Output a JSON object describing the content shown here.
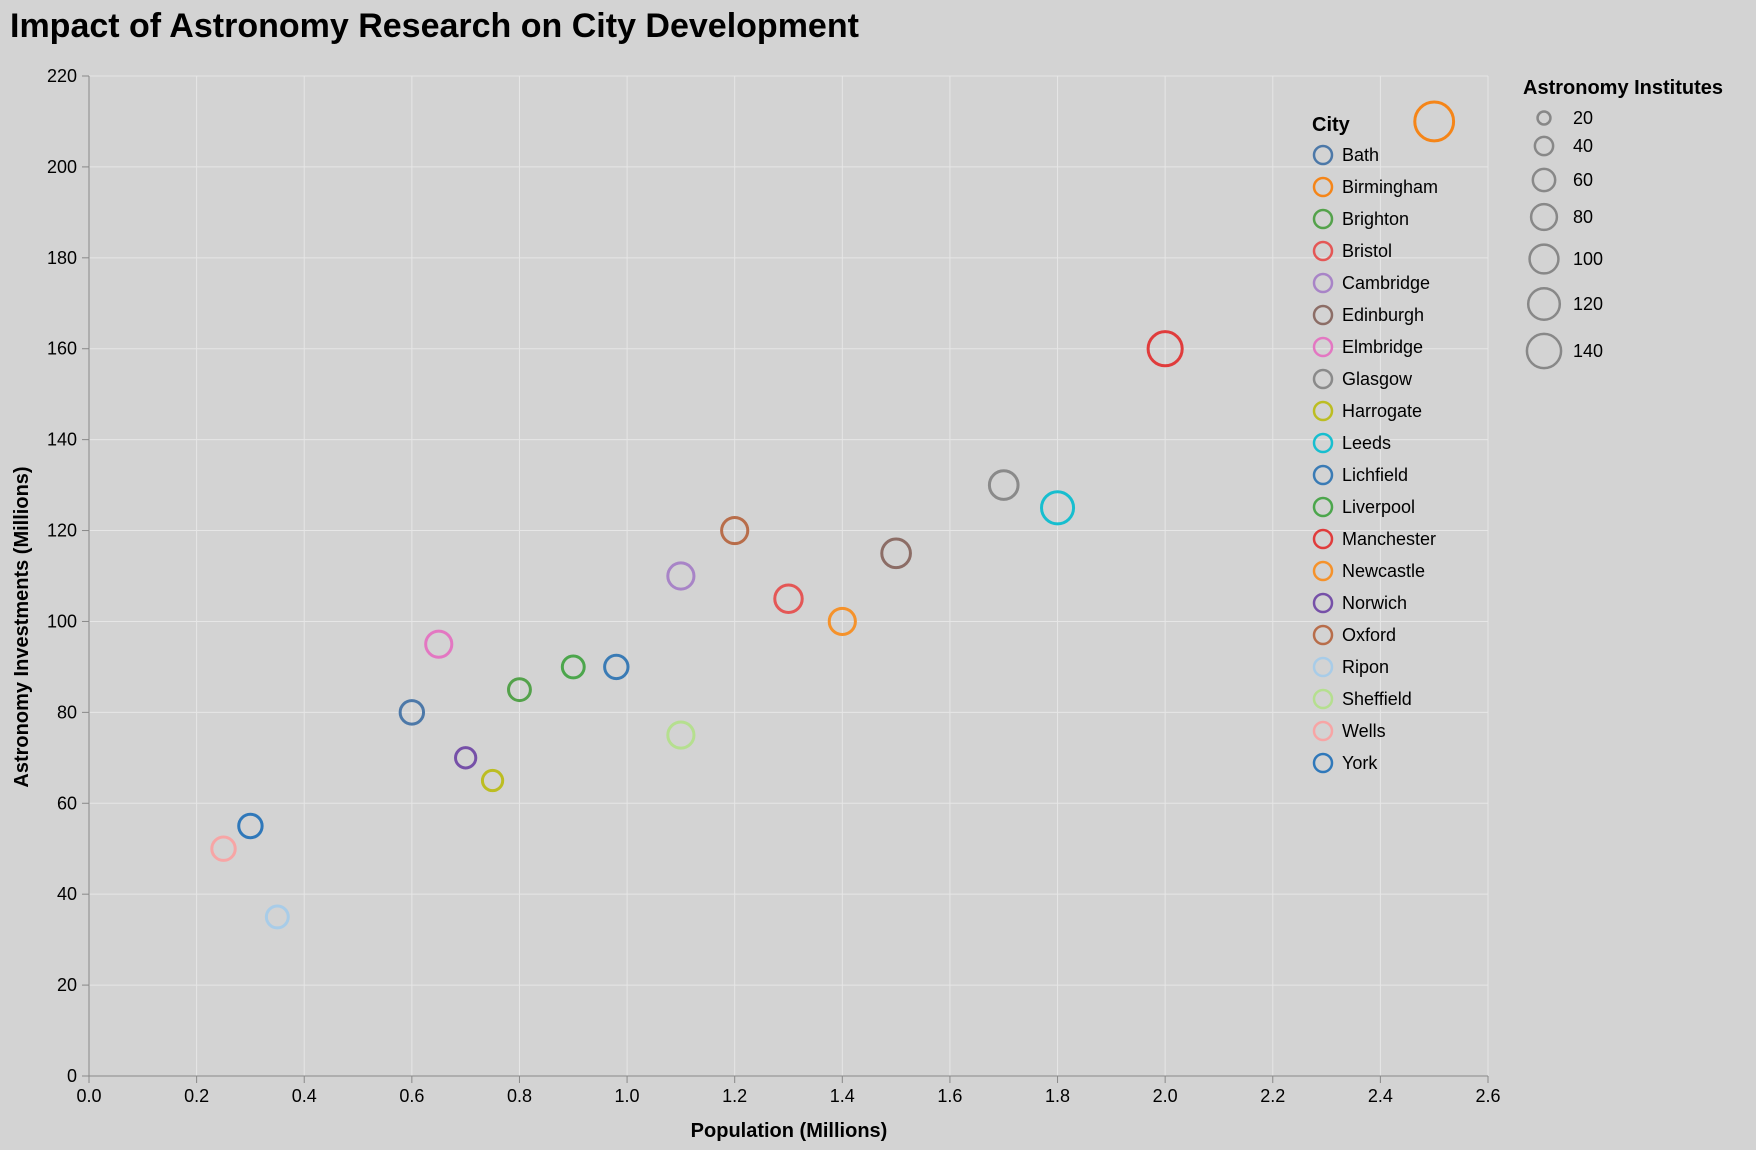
{
  "chart_data": {
    "type": "scatter",
    "title": "Impact of Astronomy Research on City Development",
    "xlabel": "Population (Millions)",
    "ylabel": "Astronomy Investments (Millions)",
    "xlim": [
      0,
      2.6
    ],
    "ylim": [
      0,
      220
    ],
    "x_ticks": [
      0.0,
      0.2,
      0.4,
      0.6,
      0.8,
      1.0,
      1.2,
      1.4,
      1.6,
      1.8,
      2.0,
      2.2,
      2.4,
      2.6
    ],
    "x_tick_labels": [
      "0.0",
      "0.2",
      "0.4",
      "0.6",
      "0.8",
      "1.0",
      "1.2",
      "1.4",
      "1.6",
      "1.8",
      "2.0",
      "2.2",
      "2.4",
      "2.6"
    ],
    "y_ticks": [
      0,
      20,
      40,
      60,
      80,
      100,
      120,
      140,
      160,
      180,
      200,
      220
    ],
    "y_tick_labels": [
      "0",
      "20",
      "40",
      "60",
      "80",
      "100",
      "120",
      "140",
      "160",
      "180",
      "200",
      "220"
    ],
    "grid": true,
    "color_legend": {
      "title": "City",
      "placement": "right",
      "entries": [
        {
          "name": "Bath",
          "color": "#4c78a8"
        },
        {
          "name": "Birmingham",
          "color": "#f58518"
        },
        {
          "name": "Brighton",
          "color": "#54a24b"
        },
        {
          "name": "Bristol",
          "color": "#e45756"
        },
        {
          "name": "Cambridge",
          "color": "#a884c7"
        },
        {
          "name": "Edinburgh",
          "color": "#8c6d66"
        },
        {
          "name": "Elmbridge",
          "color": "#e377c2"
        },
        {
          "name": "Glasgow",
          "color": "#8a8a8a"
        },
        {
          "name": "Harrogate",
          "color": "#bcbd22"
        },
        {
          "name": "Leeds",
          "color": "#17becf"
        },
        {
          "name": "Lichfield",
          "color": "#3a7bb5"
        },
        {
          "name": "Liverpool",
          "color": "#4ca64c"
        },
        {
          "name": "Manchester",
          "color": "#e03c3c"
        },
        {
          "name": "Newcastle",
          "color": "#f5922b"
        },
        {
          "name": "Norwich",
          "color": "#7650a8"
        },
        {
          "name": "Oxford",
          "color": "#b86d4a"
        },
        {
          "name": "Ripon",
          "color": "#a8cce8"
        },
        {
          "name": "Sheffield",
          "color": "#b5df8f"
        },
        {
          "name": "Wells",
          "color": "#f7a5a5"
        },
        {
          "name": "York",
          "color": "#2f78ba"
        }
      ]
    },
    "size_legend": {
      "title": "Astronomy Institutes",
      "placement": "top-right",
      "values": [
        20,
        40,
        60,
        80,
        100,
        120,
        140
      ],
      "labels": [
        "20",
        "40",
        "60",
        "80",
        "100",
        "120",
        "140"
      ]
    },
    "points": [
      {
        "city": "Wells",
        "x": 0.25,
        "y": 50,
        "size": 40
      },
      {
        "city": "York",
        "x": 0.3,
        "y": 55,
        "size": 40
      },
      {
        "city": "Ripon",
        "x": 0.35,
        "y": 35,
        "size": 35
      },
      {
        "city": "Bath",
        "x": 0.6,
        "y": 80,
        "size": 40
      },
      {
        "city": "Elmbridge",
        "x": 0.65,
        "y": 95,
        "size": 50
      },
      {
        "city": "Norwich",
        "x": 0.7,
        "y": 70,
        "size": 30
      },
      {
        "city": "Harrogate",
        "x": 0.75,
        "y": 65,
        "size": 30
      },
      {
        "city": "Brighton",
        "x": 0.8,
        "y": 85,
        "size": 35
      },
      {
        "city": "Liverpool",
        "x": 0.9,
        "y": 90,
        "size": 35
      },
      {
        "city": "Lichfield",
        "x": 0.98,
        "y": 90,
        "size": 40
      },
      {
        "city": "Cambridge",
        "x": 1.1,
        "y": 110,
        "size": 50
      },
      {
        "city": "Sheffield",
        "x": 1.1,
        "y": 75,
        "size": 50
      },
      {
        "city": "Oxford",
        "x": 1.2,
        "y": 120,
        "size": 50
      },
      {
        "city": "Bristol",
        "x": 1.3,
        "y": 105,
        "size": 55
      },
      {
        "city": "Newcastle",
        "x": 1.4,
        "y": 100,
        "size": 50
      },
      {
        "city": "Edinburgh",
        "x": 1.5,
        "y": 115,
        "size": 60
      },
      {
        "city": "Glasgow",
        "x": 1.7,
        "y": 130,
        "size": 60
      },
      {
        "city": "Leeds",
        "x": 1.8,
        "y": 125,
        "size": 75
      },
      {
        "city": "Manchester",
        "x": 2.0,
        "y": 160,
        "size": 85
      },
      {
        "city": "Birmingham",
        "x": 2.5,
        "y": 210,
        "size": 110
      }
    ]
  }
}
